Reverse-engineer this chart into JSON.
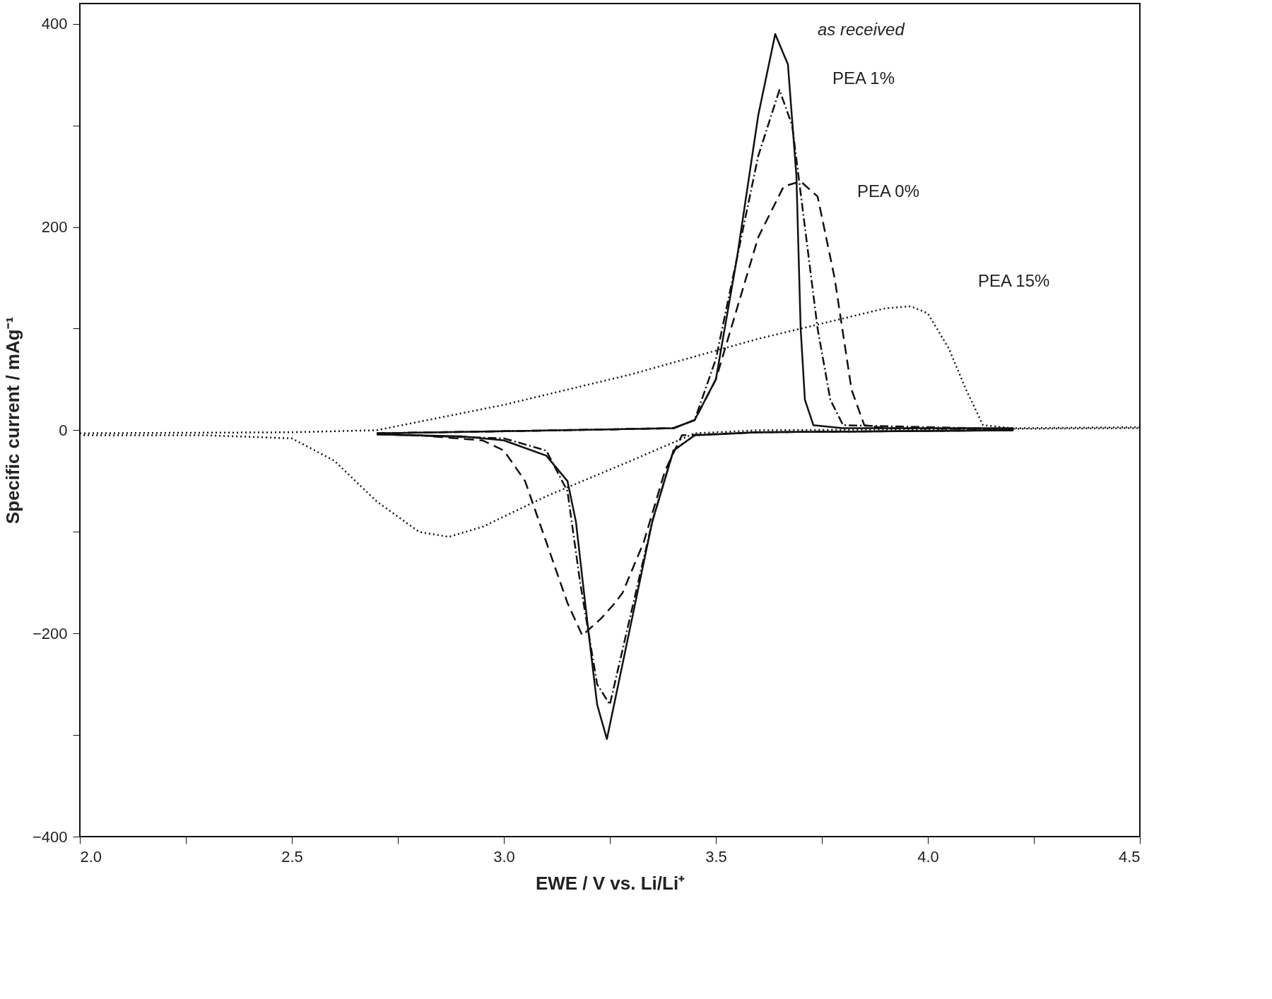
{
  "chart_data": {
    "type": "line",
    "xlabel": "EWE / V vs. Li/Li⁺",
    "ylabel": "Specific current / mAg⁻¹",
    "xlim": [
      2.0,
      4.5
    ],
    "ylim": [
      -400,
      420
    ],
    "xticks": [
      {
        "value": 2.0,
        "label": "2.0"
      },
      {
        "value": 2.25,
        "label": null
      },
      {
        "value": 2.5,
        "label": "2.5"
      },
      {
        "value": 2.75,
        "label": null
      },
      {
        "value": 3.0,
        "label": "3.0"
      },
      {
        "value": 3.25,
        "label": null
      },
      {
        "value": 3.5,
        "label": "3.5"
      },
      {
        "value": 3.75,
        "label": null
      },
      {
        "value": 4.0,
        "label": "4.0"
      },
      {
        "value": 4.25,
        "label": null
      },
      {
        "value": 4.5,
        "label": "4.5"
      }
    ],
    "yticks": [
      -400,
      {
        "value": -300,
        "label": null
      },
      -200,
      {
        "value": -100,
        "label": null
      },
      0,
      {
        "value": 100,
        "label": null
      },
      200,
      {
        "value": 300,
        "label": null
      },
      400
    ],
    "grid": false,
    "legend": false,
    "marker": "none",
    "series": [
      {
        "name": "as received",
        "color": "#111111",
        "line_style": "solid",
        "x": [
          2.7,
          3.0,
          3.4,
          3.45,
          3.5,
          3.55,
          3.6,
          3.64,
          3.67,
          3.69,
          3.7,
          3.71,
          3.73,
          3.8,
          4.2,
          4.2,
          3.6,
          3.45,
          3.4,
          3.35,
          3.3,
          3.243,
          3.22,
          3.2,
          3.17,
          3.15,
          3.1,
          3.0,
          2.9,
          2.7
        ],
        "values": [
          -3,
          -1,
          2,
          10,
          50,
          170,
          310,
          390,
          360,
          250,
          100,
          30,
          5,
          2,
          2,
          0,
          -2,
          -5,
          -20,
          -90,
          -190,
          -304,
          -270,
          -200,
          -90,
          -50,
          -25,
          -10,
          -6,
          -4
        ]
      },
      {
        "name": "PEA 1%",
        "color": "#111111",
        "line_style": "dashdot",
        "x": [
          2.7,
          3.0,
          3.4,
          3.45,
          3.5,
          3.55,
          3.6,
          3.65,
          3.68,
          3.71,
          3.74,
          3.77,
          3.8,
          4.2,
          4.2,
          3.6,
          3.45,
          3.4,
          3.35,
          3.3,
          3.25,
          3.22,
          3.18,
          3.15,
          3.1,
          3.0,
          2.7
        ],
        "values": [
          -3,
          -1,
          2,
          10,
          70,
          170,
          270,
          335,
          300,
          200,
          100,
          30,
          5,
          1,
          0,
          -2,
          -5,
          -20,
          -90,
          -180,
          -270,
          -250,
          -150,
          -60,
          -20,
          -8,
          -4
        ]
      },
      {
        "name": "PEA 0%",
        "color": "#111111",
        "line_style": "dashed",
        "x": [
          2.7,
          3.0,
          3.4,
          3.45,
          3.5,
          3.55,
          3.6,
          3.66,
          3.7,
          3.74,
          3.78,
          3.82,
          3.85,
          3.9,
          4.2,
          4.2,
          3.6,
          3.42,
          3.38,
          3.33,
          3.28,
          3.26,
          3.23,
          3.185,
          3.15,
          3.1,
          3.05,
          3.0,
          2.95,
          2.8,
          2.7
        ],
        "values": [
          -3,
          -1,
          2,
          10,
          50,
          120,
          190,
          240,
          245,
          230,
          150,
          40,
          5,
          2,
          1,
          0,
          -2,
          -5,
          -40,
          -110,
          -160,
          -171,
          -185,
          -202,
          -170,
          -110,
          -50,
          -20,
          -10,
          -5,
          -4
        ]
      },
      {
        "name": "PEA 15%",
        "color": "#111111",
        "line_style": "dotted",
        "x": [
          2.0,
          2.5,
          2.7,
          3.0,
          3.3,
          3.6,
          3.8,
          3.9,
          3.96,
          4.0,
          4.05,
          4.09,
          4.13,
          4.2,
          4.5,
          4.5,
          4.0,
          3.6,
          3.45,
          3.3,
          3.1,
          2.95,
          2.87,
          2.8,
          2.7,
          2.6,
          2.5,
          2.3,
          2.0
        ],
        "values": [
          -3,
          -2,
          0,
          25,
          55,
          90,
          110,
          120,
          122,
          115,
          80,
          40,
          5,
          2,
          3,
          2,
          1,
          0,
          -3,
          -30,
          -65,
          -95,
          -105,
          -100,
          -70,
          -30,
          -8,
          -5,
          -5
        ]
      }
    ]
  }
}
